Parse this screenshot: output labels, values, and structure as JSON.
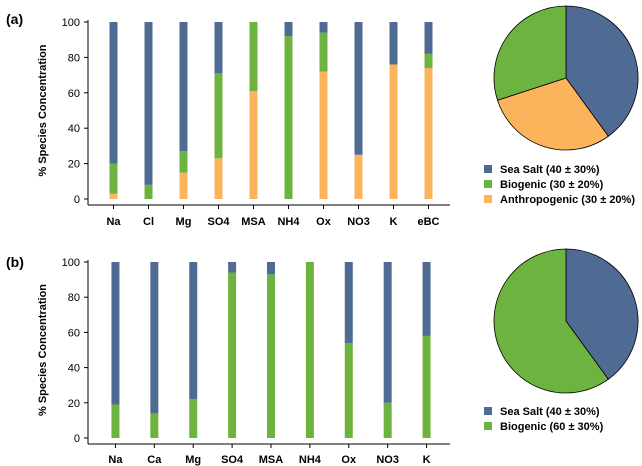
{
  "colors": {
    "sea_salt": "#4f6b93",
    "biogenic": "#6cb33f",
    "anthropogenic": "#fbb45c",
    "axis": "#000000"
  },
  "chart_data": [
    {
      "panel": "(a)",
      "type": "bar",
      "stacked": true,
      "ylabel": "% Species Concentration",
      "ylim": [
        0,
        100
      ],
      "yticks": [
        0,
        20,
        40,
        60,
        80,
        100
      ],
      "categories": [
        "Na",
        "Cl",
        "Mg",
        "SO4",
        "MSA",
        "NH4",
        "Ox",
        "NO3",
        "K",
        "eBC"
      ],
      "series": [
        {
          "name": "Anthropogenic",
          "color_key": "anthropogenic",
          "values": [
            3,
            0,
            15,
            23,
            61,
            0,
            72,
            25,
            76,
            74
          ]
        },
        {
          "name": "Biogenic",
          "color_key": "biogenic",
          "values": [
            17,
            8,
            12,
            48,
            39,
            92,
            22,
            0,
            0,
            8
          ]
        },
        {
          "name": "Sea Salt",
          "color_key": "sea_salt",
          "values": [
            80,
            92,
            73,
            29,
            0,
            8,
            6,
            75,
            24,
            18
          ]
        }
      ],
      "pie": {
        "slices": [
          {
            "name": "Sea Salt",
            "color_key": "sea_salt",
            "value": 40
          },
          {
            "name": "Anthropogenic",
            "color_key": "anthropogenic",
            "value": 30
          },
          {
            "name": "Biogenic",
            "color_key": "biogenic",
            "value": 30
          }
        ]
      },
      "legend": [
        {
          "label": "Sea Salt (40 ± 30%)",
          "color_key": "sea_salt"
        },
        {
          "label": "Biogenic (30 ± 20%)",
          "color_key": "biogenic"
        },
        {
          "label": "Anthropogenic (30 ± 20%)",
          "color_key": "anthropogenic"
        }
      ]
    },
    {
      "panel": "(b)",
      "type": "bar",
      "stacked": true,
      "ylabel": "% Species Concentration",
      "ylim": [
        0,
        100
      ],
      "yticks": [
        0,
        20,
        40,
        60,
        80,
        100
      ],
      "categories": [
        "Na",
        "Ca",
        "Mg",
        "SO4",
        "MSA",
        "NH4",
        "Ox",
        "NO3",
        "K"
      ],
      "series": [
        {
          "name": "Biogenic",
          "color_key": "biogenic",
          "values": [
            19,
            14,
            22,
            94,
            93,
            100,
            54,
            20,
            58
          ]
        },
        {
          "name": "Sea Salt",
          "color_key": "sea_salt",
          "values": [
            81,
            86,
            78,
            6,
            7,
            0,
            46,
            80,
            42
          ]
        }
      ],
      "pie": {
        "slices": [
          {
            "name": "Sea Salt",
            "color_key": "sea_salt",
            "value": 40
          },
          {
            "name": "Biogenic",
            "color_key": "biogenic",
            "value": 60
          }
        ]
      },
      "legend": [
        {
          "label": "Sea Salt (40 ± 30%)",
          "color_key": "sea_salt"
        },
        {
          "label": "Biogenic (60 ± 30%)",
          "color_key": "biogenic"
        }
      ]
    }
  ]
}
